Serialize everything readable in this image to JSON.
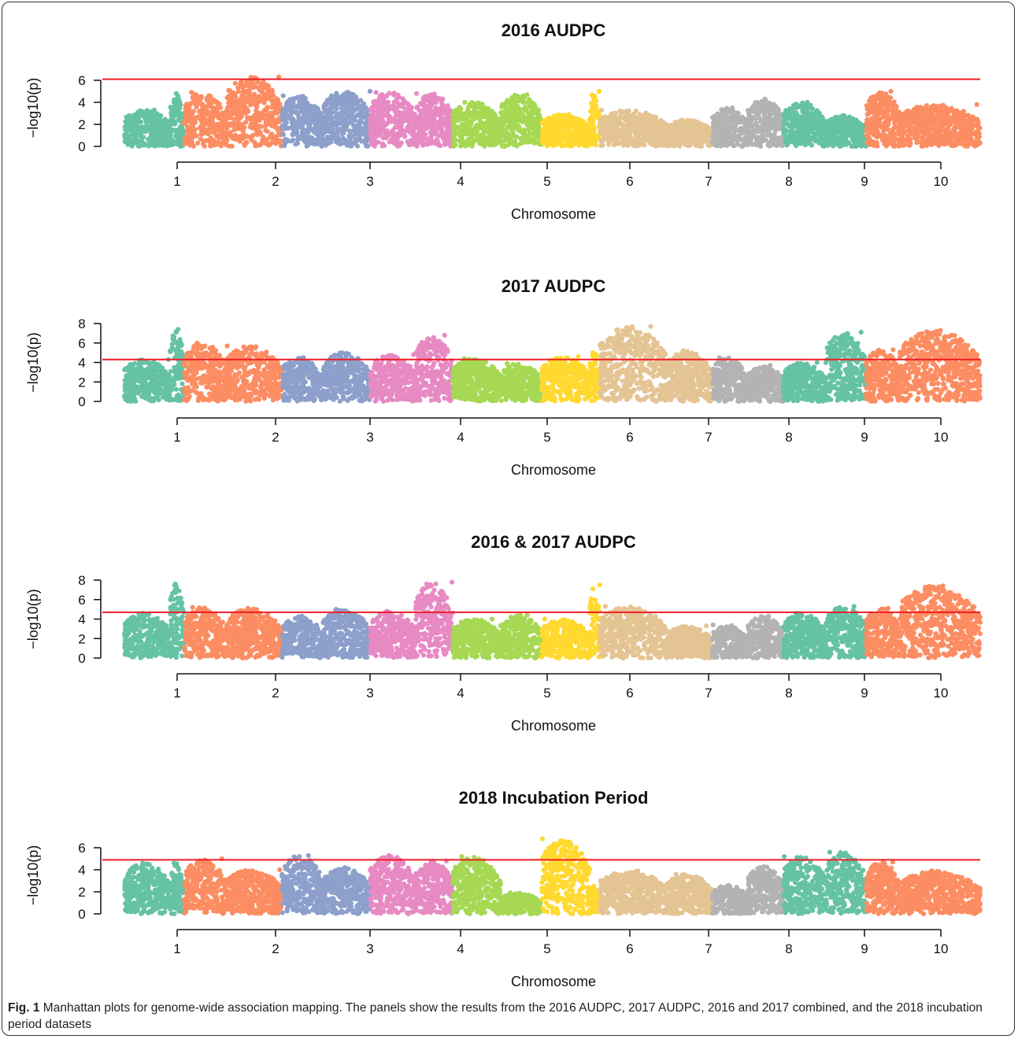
{
  "caption": {
    "label": "Fig. 1",
    "text": "Manhattan plots for genome-wide association mapping. The panels show the results from the 2016 AUDPC, 2017 AUDPC, 2016 and 2017 combined, and the 2018 incubation period datasets"
  },
  "colors": {
    "threshold": "#ee1c25",
    "chromosome_palette": [
      "#66c2a5",
      "#fc8d62",
      "#8da0cb",
      "#e78ac3",
      "#a6d854",
      "#ffd92f",
      "#e5c494",
      "#b3b3b3"
    ],
    "chromosome_color_sequence": [
      "#66c2a5",
      "#66c2a5",
      "#fc8d62",
      "#fc8d62",
      "#8da0cb",
      "#8da0cb",
      "#e78ac3",
      "#e78ac3",
      "#a6d854",
      "#a6d854",
      "#ffd92f",
      "#ffd92f",
      "#e5c494",
      "#e5c494",
      "#b3b3b3",
      "#b3b3b3",
      "#66c2a5",
      "#66c2a5",
      "#fc8d62",
      "#fc8d62"
    ]
  },
  "chart_data": [
    {
      "type": "scatter",
      "title": "2016 AUDPC",
      "xlabel": "Chromosome",
      "ylabel": "−log10(p)",
      "x_ticks": [
        "1",
        "2",
        "3",
        "4",
        "5",
        "6",
        "7",
        "8",
        "9",
        "10"
      ],
      "y_ticks": [
        0,
        2,
        4,
        6
      ],
      "ylim": [
        0,
        7
      ],
      "threshold": 6.1,
      "segment_peaks": [
        3.3,
        4.8,
        4.9,
        6.3,
        4.6,
        5.0,
        4.9,
        4.8,
        4.0,
        4.7,
        2.9,
        5.0,
        3.3,
        2.4,
        3.5,
        4.3,
        4.0,
        2.8,
        5.0,
        3.8
      ]
    },
    {
      "type": "scatter",
      "title": "2017 AUDPC",
      "xlabel": "Chromosome",
      "ylabel": "−log10(p)",
      "x_ticks": [
        "1",
        "2",
        "3",
        "4",
        "5",
        "6",
        "7",
        "8",
        "9",
        "10"
      ],
      "y_ticks": [
        0,
        2,
        4,
        6,
        8
      ],
      "ylim": [
        0,
        8
      ],
      "threshold": 4.3,
      "segment_peaks": [
        4.3,
        7.4,
        6.0,
        5.7,
        4.5,
        5.0,
        4.8,
        6.8,
        4.4,
        3.9,
        4.6,
        5.0,
        7.7,
        5.2,
        4.5,
        3.7,
        4.0,
        7.1,
        5.3,
        7.3
      ]
    },
    {
      "type": "scatter",
      "title": "2016 & 2017 AUDPC",
      "xlabel": "Chromosome",
      "ylabel": "−log10(p)",
      "x_ticks": [
        "1",
        "2",
        "3",
        "4",
        "5",
        "6",
        "7",
        "8",
        "9",
        "10"
      ],
      "y_ticks": [
        0,
        2,
        4,
        6,
        8
      ],
      "ylim": [
        0,
        8
      ],
      "threshold": 4.7,
      "segment_peaks": [
        4.6,
        7.6,
        5.2,
        5.1,
        4.3,
        5.0,
        4.8,
        7.8,
        4.0,
        4.4,
        4.0,
        7.5,
        5.3,
        3.3,
        3.4,
        4.3,
        4.6,
        5.3,
        5.1,
        7.4
      ]
    },
    {
      "type": "scatter",
      "title": "2018 Incubation Period",
      "xlabel": "Chromosome",
      "ylabel": "−log10(p)",
      "x_ticks": [
        "1",
        "2",
        "3",
        "4",
        "5",
        "6",
        "7",
        "8",
        "9",
        "10"
      ],
      "y_ticks": [
        0,
        2,
        4,
        6
      ],
      "ylim": [
        0,
        7
      ],
      "threshold": 4.9,
      "segment_peaks": [
        4.6,
        4.6,
        5.0,
        4.0,
        5.3,
        4.2,
        5.3,
        4.8,
        5.2,
        1.9,
        6.8,
        2.5,
        3.9,
        3.6,
        2.6,
        4.3,
        5.2,
        5.6,
        4.7,
        3.9
      ]
    }
  ]
}
